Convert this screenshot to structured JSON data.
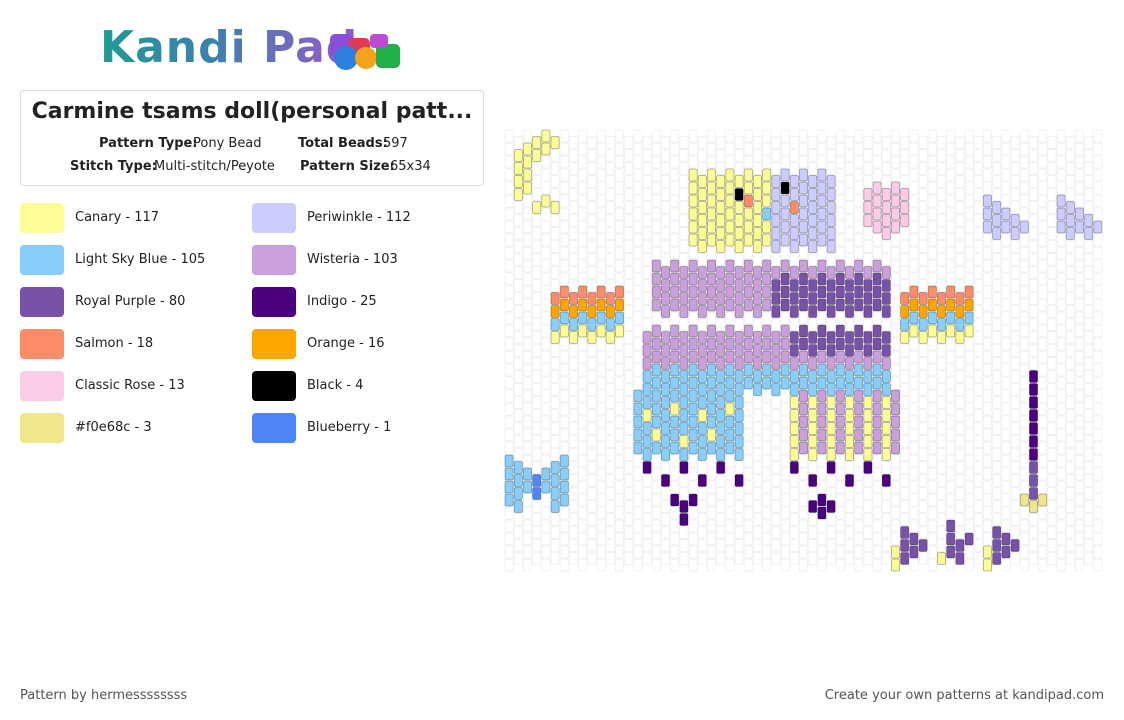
{
  "header": {
    "logo": "Kandi Pad",
    "title": "Carmine tsams doll(personal patt...",
    "fields": [
      {
        "label": "Pattern Type:",
        "value": "Pony Bead"
      },
      {
        "label": "Total Beads:",
        "value": "597"
      },
      {
        "label": "Stitch Type:",
        "value": "Multi-stitch/Peyote"
      },
      {
        "label": "Pattern Size:",
        "value": "65x34"
      }
    ]
  },
  "legend": [
    {
      "label": "Canary - 117",
      "color": "#fdfd96"
    },
    {
      "label": "Periwinkle - 112",
      "color": "#ccccff"
    },
    {
      "label": "Light Sky Blue - 105",
      "color": "#87cefa"
    },
    {
      "label": "Wisteria - 103",
      "color": "#c9a0dc"
    },
    {
      "label": "Royal Purple - 80",
      "color": "#7851a9"
    },
    {
      "label": "Indigo - 25",
      "color": "#4b0082"
    },
    {
      "label": "Salmon - 18",
      "color": "#ff8c69"
    },
    {
      "label": "Orange - 16",
      "color": "#ffa500"
    },
    {
      "label": "Classic Rose - 13",
      "color": "#fbcce7"
    },
    {
      "label": "Black - 4",
      "color": "#000000"
    },
    {
      "label": "#f0e68c - 3",
      "color": "#f0e68c"
    },
    {
      "label": "Blueberry - 1",
      "color": "#4f86f7"
    }
  ],
  "footer": {
    "credit": "Pattern by hermessssssss",
    "promo": "Create your own patterns at kandipad.com"
  }
}
